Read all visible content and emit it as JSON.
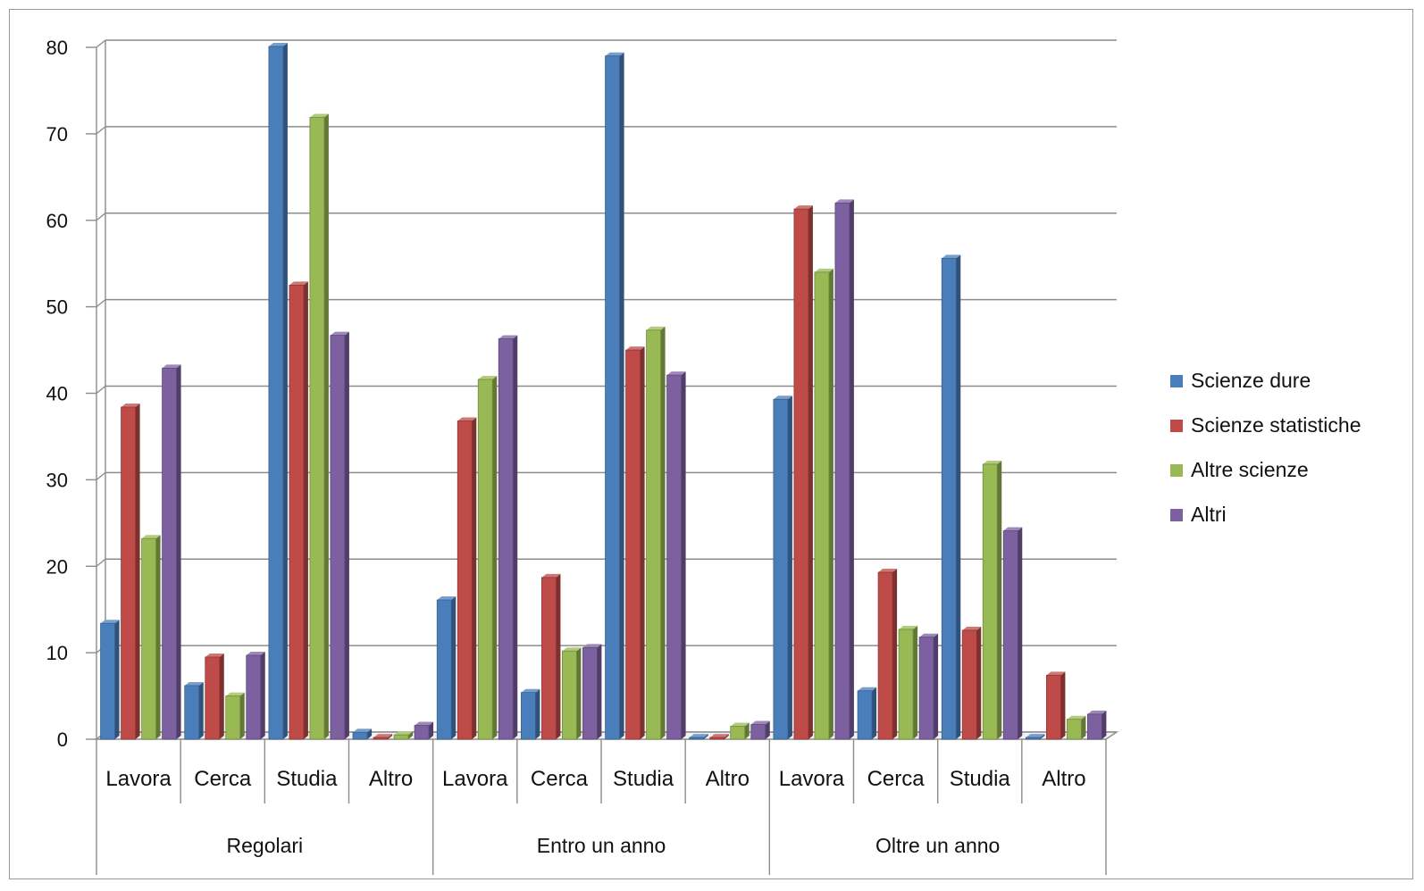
{
  "chart_data": {
    "type": "bar",
    "title": "",
    "xlabel": "",
    "ylabel": "",
    "ylim": [
      0,
      80
    ],
    "yticks": [
      "0",
      "10",
      "20",
      "30",
      "40",
      "50",
      "60",
      "70",
      "80"
    ],
    "grid": true,
    "legend_position": "right",
    "groups": [
      {
        "label": "Regolari",
        "categories": [
          "Lavora",
          "Cerca",
          "Studia",
          "Altro"
        ]
      },
      {
        "label": "Entro un anno",
        "categories": [
          "Lavora",
          "Cerca",
          "Studia",
          "Altro"
        ]
      },
      {
        "label": "Oltre un anno",
        "categories": [
          "Lavora",
          "Cerca",
          "Studia",
          "Altro"
        ]
      }
    ],
    "categories": [
      "Lavora",
      "Cerca",
      "Studia",
      "Altro",
      "Lavora",
      "Cerca",
      "Studia",
      "Altro",
      "Lavora",
      "Cerca",
      "Studia",
      "Altro"
    ],
    "series": [
      {
        "name": "Scienze dure",
        "color": "#4a7ebb",
        "values": [
          13.4,
          6.2,
          80.1,
          0.8,
          16.1,
          5.4,
          79.0,
          0.2,
          39.3,
          5.6,
          55.6,
          0.2
        ]
      },
      {
        "name": "Scienze statistiche",
        "color": "#be4b48",
        "values": [
          38.4,
          9.5,
          52.5,
          0.2,
          36.8,
          18.7,
          45.0,
          0.2,
          61.3,
          19.3,
          12.6,
          7.4
        ]
      },
      {
        "name": "Altre scienze",
        "color": "#98b954",
        "values": [
          23.2,
          5.0,
          71.9,
          0.5,
          41.6,
          10.2,
          47.3,
          1.5,
          54.0,
          12.7,
          31.8,
          2.3
        ]
      },
      {
        "name": "Altri",
        "color": "#7d60a0",
        "values": [
          42.9,
          9.7,
          46.7,
          1.6,
          46.3,
          10.6,
          42.1,
          1.7,
          62.0,
          11.8,
          24.1,
          2.9
        ]
      }
    ]
  }
}
